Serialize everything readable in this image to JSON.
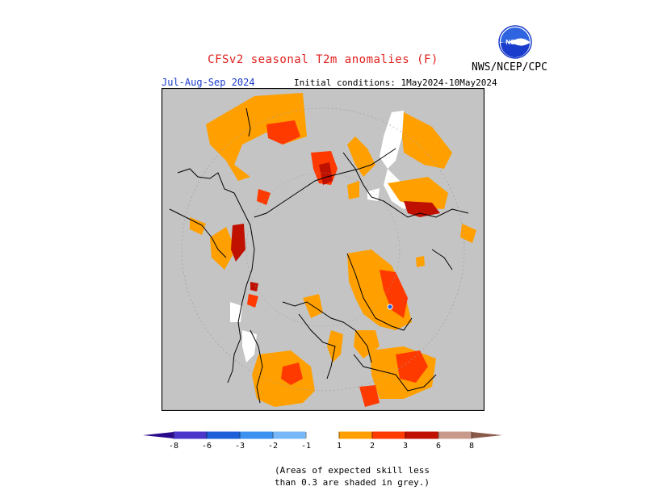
{
  "header": {
    "title": "CFSv2 seasonal T2m anomalies (F)",
    "agency": "NWS/NCEP/CPC",
    "season": "Jul-Aug-Sep 2024",
    "initial_conditions": "Initial conditions: 1May2024-10May2024",
    "logo_text": "NOAA"
  },
  "colors": {
    "title": "#e0201c",
    "season": "#1a3ccc",
    "grey_mask": "#c4c4c4",
    "anom_1_2": "#ffa000",
    "anom_2_3": "#ff3a00",
    "anom_3_6": "#c01000",
    "anom_6_8": "#c89a8c"
  },
  "colorbar": {
    "tick_labels": [
      "-8",
      "-6",
      "-3",
      "-2",
      "-1",
      "1",
      "2",
      "3",
      "6",
      "8"
    ],
    "segments": [
      {
        "from": "-8",
        "to": "-6",
        "color": "#4a36c8"
      },
      {
        "from": "-6",
        "to": "-3",
        "color": "#1e5ed8"
      },
      {
        "from": "-3",
        "to": "-2",
        "color": "#3c90f0"
      },
      {
        "from": "-2",
        "to": "-1",
        "color": "#78b8f8"
      },
      {
        "from": "-1",
        "to": "1",
        "color": "#ffffff"
      },
      {
        "from": "1",
        "to": "2",
        "color": "#ffa000"
      },
      {
        "from": "2",
        "to": "3",
        "color": "#ff3a00"
      },
      {
        "from": "3",
        "to": "6",
        "color": "#c01000"
      },
      {
        "from": "6",
        "to": "8",
        "color": "#c89a8c"
      }
    ],
    "under_color": "#2a0a8c",
    "over_color": "#8a5a4a"
  },
  "notes": {
    "line1": "(Areas of expected skill less",
    "line2": "than 0.3 are shaded in grey.)"
  }
}
